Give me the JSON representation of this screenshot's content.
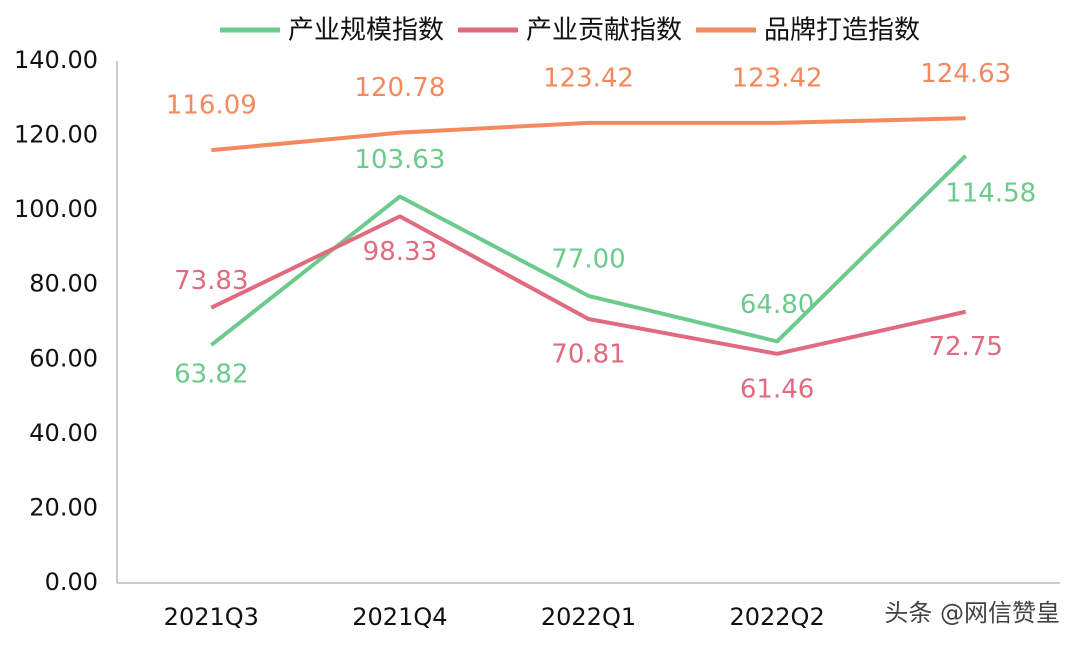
{
  "chart_data": {
    "type": "line",
    "categories": [
      "2021Q3",
      "2021Q4",
      "2022Q1",
      "2022Q2",
      null
    ],
    "series": [
      {
        "name": "产业规模指数",
        "color": "#6ccb8c",
        "values": [
          63.82,
          103.63,
          77,
          64.8,
          114.58
        ],
        "value_labels": [
          "63.82",
          "103.63",
          "77.00",
          "64.80",
          "114.58"
        ]
      },
      {
        "name": "产业贡献指数",
        "color": "#e06a7e",
        "values": [
          73.83,
          98.33,
          70.81,
          61.46,
          72.75
        ],
        "value_labels": [
          "73.83",
          "98.33",
          "70.81",
          "61.46",
          "72.75"
        ]
      },
      {
        "name": "品牌打造指数",
        "color": "#f28a5e",
        "values": [
          116.09,
          120.78,
          123.42,
          123.42,
          124.63
        ],
        "value_labels": [
          "116.09",
          "120.78",
          "123.42",
          "123.42",
          "124.63"
        ]
      }
    ],
    "ylim": [
      0,
      140
    ],
    "yticks": [
      {
        "value": 0,
        "label": "0.00"
      },
      {
        "value": 20,
        "label": "20.00"
      },
      {
        "value": 40,
        "label": "40.00"
      },
      {
        "value": 60,
        "label": "60.00"
      },
      {
        "value": 80,
        "label": "80.00"
      },
      {
        "value": 100,
        "label": "100.00"
      },
      {
        "value": 120,
        "label": "120.00"
      },
      {
        "value": 140,
        "label": "140.00"
      }
    ],
    "grid": false,
    "legend": "top",
    "watermark": "头条 @网信赞皇"
  }
}
